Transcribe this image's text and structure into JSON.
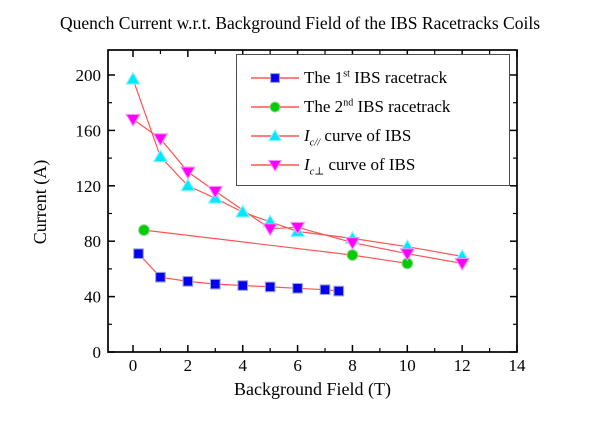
{
  "title": "Quench Current w.r.t. Background Field of the IBS Racetracks Coils",
  "chart_data": {
    "type": "scatter",
    "subtype": "line+symbol",
    "title": "Quench Current w.r.t. Background Field of the IBS Racetracks Coils",
    "xlabel": "Background Field (T)",
    "ylabel": "Current (A)",
    "xlim": [
      -1,
      14
    ],
    "ylim": [
      0,
      217
    ],
    "x_major_ticks": [
      0,
      2,
      4,
      6,
      8,
      10,
      12,
      14
    ],
    "x_minor_ticks": [
      1,
      3,
      5,
      7,
      9,
      11,
      13
    ],
    "y_major_ticks": [
      0,
      40,
      80,
      120,
      160,
      200
    ],
    "y_minor_ticks": [
      20,
      60,
      100,
      140,
      180
    ],
    "grid": false,
    "tick_direction": "in",
    "frame": "box",
    "connector_line_color": "#ff5555",
    "legend": {
      "position": "top-right-inside",
      "border_color": "#4d4d4d",
      "background": "#ffffff"
    },
    "series": [
      {
        "name": "The 1st IBS racetrack",
        "marker": "square",
        "color": "#0000ee",
        "edge_color": "#9e9ee0",
        "legend_runs": [
          {
            "t": "The 1",
            "style": "normal"
          },
          {
            "t": "st",
            "style": "sup"
          },
          {
            "t": " IBS racetrack",
            "style": "normal"
          }
        ],
        "points": [
          [
            0.2,
            71
          ],
          [
            1,
            54
          ],
          [
            2,
            51
          ],
          [
            3,
            49
          ],
          [
            4,
            48
          ],
          [
            5,
            47
          ],
          [
            6,
            46
          ],
          [
            7,
            45
          ],
          [
            7.5,
            44
          ]
        ]
      },
      {
        "name": "The 2nd IBS racetrack",
        "marker": "circle",
        "color": "#00cc00",
        "edge_color": "#7fd67f",
        "legend_runs": [
          {
            "t": "The 2",
            "style": "normal"
          },
          {
            "t": "nd",
            "style": "sup"
          },
          {
            "t": " IBS racetrack",
            "style": "normal"
          }
        ],
        "points": [
          [
            0.4,
            88
          ],
          [
            8,
            70
          ],
          [
            10,
            64
          ]
        ]
      },
      {
        "name": "Ic// curve of IBS",
        "marker": "triangle-up",
        "color": "#00e8ff",
        "edge_color": "#8ff2fa",
        "legend_runs": [
          {
            "t": "I",
            "style": "italic"
          },
          {
            "t": "c//",
            "style": "sub-italic"
          },
          {
            "t": " curve of IBS",
            "style": "normal"
          }
        ],
        "points": [
          [
            0,
            197
          ],
          [
            1,
            141
          ],
          [
            2,
            120
          ],
          [
            3,
            111
          ],
          [
            4,
            101
          ],
          [
            5,
            94
          ],
          [
            6,
            87
          ],
          [
            8,
            82
          ],
          [
            10,
            76
          ],
          [
            12,
            69
          ]
        ]
      },
      {
        "name": "Ic⊥ curve of IBS",
        "marker": "triangle-down",
        "color": "#ff00ff",
        "edge_color": "#f98df9",
        "legend_runs": [
          {
            "t": "I",
            "style": "italic"
          },
          {
            "t": "c⊥",
            "style": "sub-italic"
          },
          {
            "t": " curve of IBS",
            "style": "normal"
          }
        ],
        "points": [
          [
            0,
            168
          ],
          [
            1,
            154
          ],
          [
            2,
            130
          ],
          [
            3,
            116
          ],
          [
            5,
            89
          ],
          [
            6,
            90
          ],
          [
            8,
            79
          ],
          [
            10,
            71
          ],
          [
            12,
            64
          ]
        ]
      }
    ]
  }
}
